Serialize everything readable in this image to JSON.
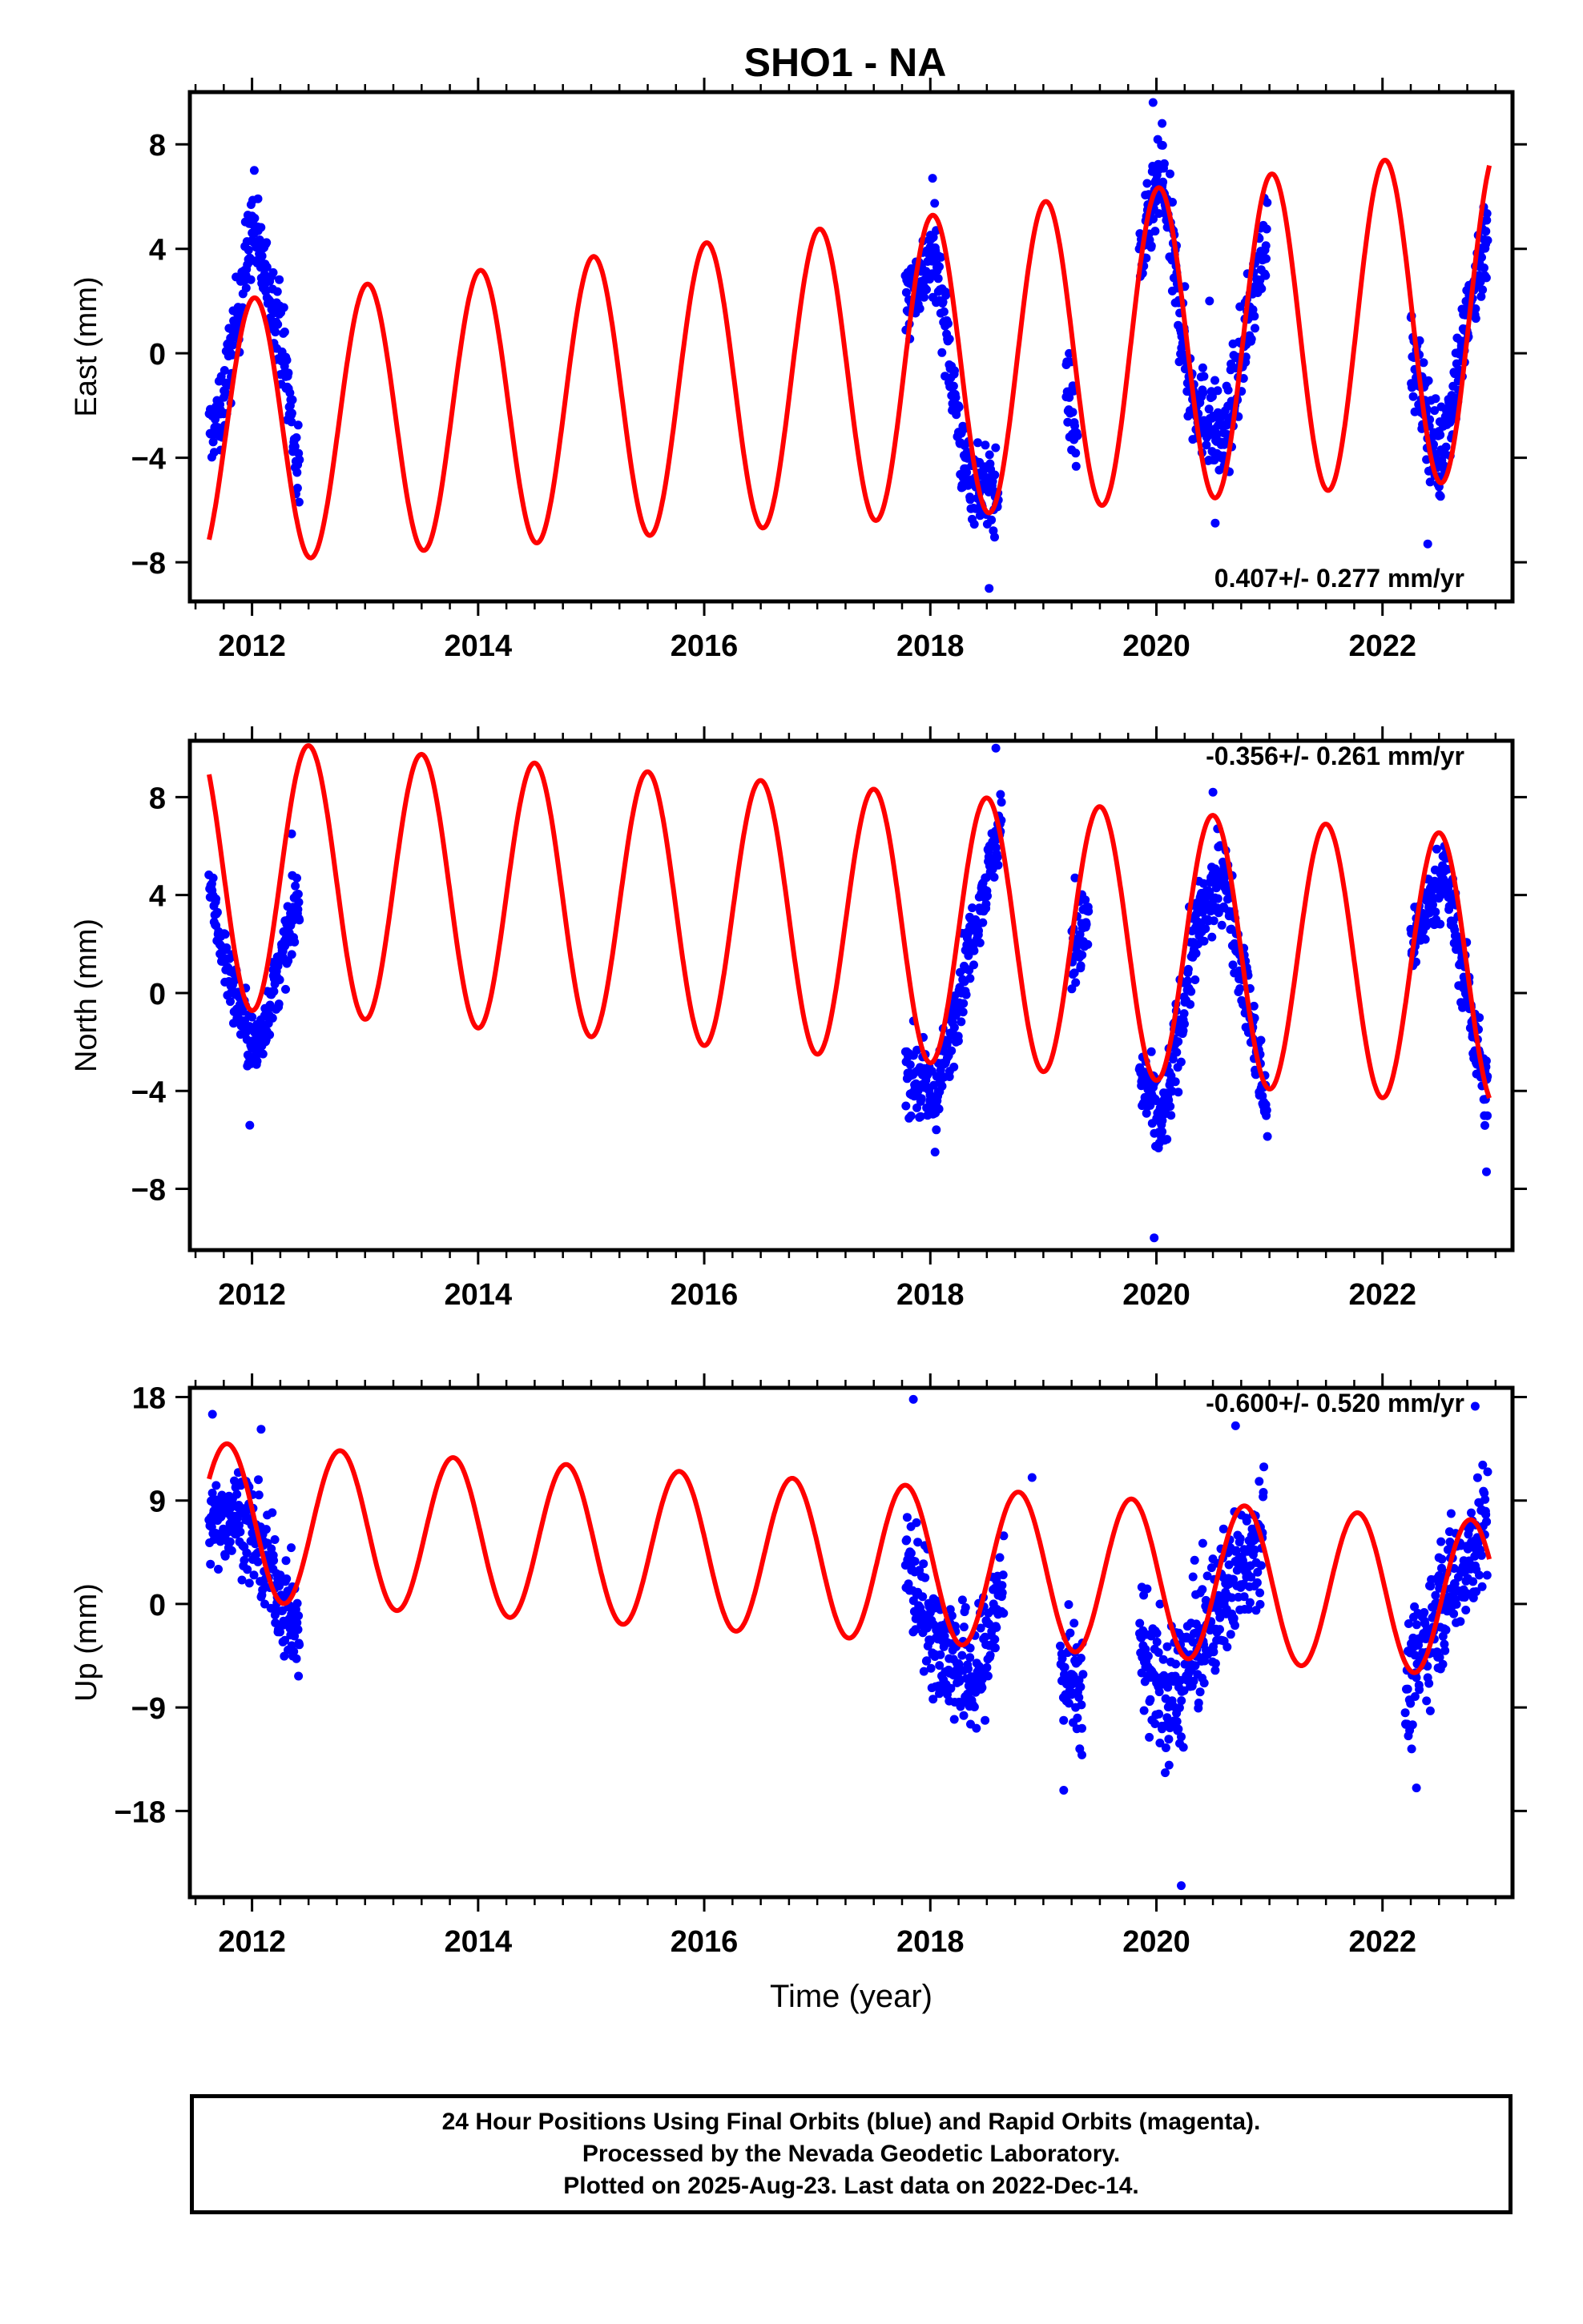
{
  "title": "SHO1 - NA",
  "colors": {
    "data": "#0000ff",
    "model": "#ff0000",
    "frame": "#000000"
  },
  "chart_data": [
    {
      "type": "scatter",
      "component": "east",
      "ylabel": "East (mm)",
      "xlim": [
        2011.45,
        2023.15
      ],
      "ylim": [
        -9.5,
        10.0
      ],
      "yticks": [
        8,
        4,
        0,
        -4,
        -8
      ],
      "ytick_labels": [
        "8",
        "4",
        "0",
        "−4",
        "−8"
      ],
      "xticks": [
        2012,
        2014,
        2016,
        2018,
        2020,
        2022
      ],
      "xtick_labels": [
        "2012",
        "2014",
        "2016",
        "2018",
        "2020",
        "2022"
      ],
      "rate_text": "0.407+/- 0.277 mm/yr",
      "rate_position": "bottom-right",
      "model": {
        "offset": -0.9,
        "rate": 0.407,
        "annual_amp": 5.0,
        "annual_peak": 0.02,
        "amp_change_per_yr": 0.12
      },
      "segments": [
        {
          "t": [
            2011.62,
            2011.72
          ],
          "y": [
            -3.0,
            -2.5
          ],
          "scatter": 1.2
        },
        {
          "t": [
            2011.72,
            2012.0
          ],
          "y": [
            -2.5,
            4.8
          ],
          "scatter": 1.5
        },
        {
          "t": [
            2012.0,
            2012.25
          ],
          "y": [
            4.8,
            1.0
          ],
          "scatter": 1.5
        },
        {
          "t": [
            2012.25,
            2012.42
          ],
          "y": [
            1.0,
            -5.0
          ],
          "scatter": 1.6
        },
        {
          "t": [
            2017.78,
            2018.05
          ],
          "y": [
            2.0,
            3.8
          ],
          "scatter": 1.4
        },
        {
          "t": [
            2018.05,
            2018.3
          ],
          "y": [
            3.8,
            -4.5
          ],
          "scatter": 1.5
        },
        {
          "t": [
            2018.3,
            2018.6
          ],
          "y": [
            -4.5,
            -5.5
          ],
          "scatter": 1.5
        },
        {
          "t": [
            2019.2,
            2019.3
          ],
          "y": [
            -1.0,
            -3.5
          ],
          "scatter": 1.6
        },
        {
          "t": [
            2019.85,
            2020.05
          ],
          "y": [
            3.5,
            6.8
          ],
          "scatter": 1.5
        },
        {
          "t": [
            2020.05,
            2020.3
          ],
          "y": [
            6.8,
            -1.5
          ],
          "scatter": 1.8
        },
        {
          "t": [
            2020.3,
            2020.6
          ],
          "y": [
            -1.5,
            -3.5
          ],
          "scatter": 1.6
        },
        {
          "t": [
            2020.6,
            2020.98
          ],
          "y": [
            -3.5,
            5.0
          ],
          "scatter": 1.6
        },
        {
          "t": [
            2022.25,
            2022.5
          ],
          "y": [
            0.0,
            -4.2
          ],
          "scatter": 1.6
        },
        {
          "t": [
            2022.5,
            2022.93
          ],
          "y": [
            -4.2,
            5.0
          ],
          "scatter": 1.7
        }
      ],
      "outliers": [
        [
          2012.02,
          7.0
        ],
        [
          2018.52,
          -9.0
        ],
        [
          2019.97,
          9.6
        ],
        [
          2020.47,
          2.0
        ],
        [
          2020.52,
          -6.5
        ],
        [
          2022.4,
          -7.3
        ],
        [
          2018.02,
          6.7
        ],
        [
          2020.05,
          8.8
        ]
      ]
    },
    {
      "type": "scatter",
      "component": "north",
      "ylabel": "North (mm)",
      "xlim": [
        2011.45,
        2023.15
      ],
      "ylim": [
        -10.5,
        10.3
      ],
      "yticks": [
        8,
        4,
        0,
        -4,
        -8
      ],
      "ytick_labels": [
        "8",
        "4",
        "0",
        "−4",
        "−8"
      ],
      "xticks": [
        2012,
        2014,
        2016,
        2018,
        2020,
        2022
      ],
      "xtick_labels": [
        "2012",
        "2014",
        "2016",
        "2018",
        "2020",
        "2022"
      ],
      "rate_text": "-0.356+/- 0.261 mm/yr",
      "rate_position": "top-right",
      "model": {
        "offset": 3.0,
        "rate": -0.356,
        "annual_amp": 5.5,
        "annual_peak": 0.5,
        "amp_change_per_yr": 0.0
      },
      "segments": [
        {
          "t": [
            2011.62,
            2011.75
          ],
          "y": [
            4.5,
            1.5
          ],
          "scatter": 1.0
        },
        {
          "t": [
            2011.75,
            2012.02
          ],
          "y": [
            1.5,
            -2.5
          ],
          "scatter": 1.3
        },
        {
          "t": [
            2012.02,
            2012.22
          ],
          "y": [
            -2.5,
            0.5
          ],
          "scatter": 1.2
        },
        {
          "t": [
            2012.22,
            2012.42
          ],
          "y": [
            0.5,
            4.0
          ],
          "scatter": 1.2
        },
        {
          "t": [
            2017.78,
            2018.05
          ],
          "y": [
            -3.0,
            -4.5
          ],
          "scatter": 1.5
        },
        {
          "t": [
            2018.05,
            2018.35
          ],
          "y": [
            -4.5,
            2.0
          ],
          "scatter": 1.5
        },
        {
          "t": [
            2018.35,
            2018.63
          ],
          "y": [
            2.0,
            7.0
          ],
          "scatter": 1.2
        },
        {
          "t": [
            2019.25,
            2019.4
          ],
          "y": [
            1.5,
            3.0
          ],
          "scatter": 1.5
        },
        {
          "t": [
            2019.85,
            2020.05
          ],
          "y": [
            -3.5,
            -5.5
          ],
          "scatter": 1.6
        },
        {
          "t": [
            2020.05,
            2020.35
          ],
          "y": [
            -5.5,
            2.5
          ],
          "scatter": 1.7
        },
        {
          "t": [
            2020.35,
            2020.6
          ],
          "y": [
            2.5,
            5.0
          ],
          "scatter": 1.5
        },
        {
          "t": [
            2020.6,
            2020.98
          ],
          "y": [
            5.0,
            -5.0
          ],
          "scatter": 1.5
        },
        {
          "t": [
            2022.25,
            2022.55
          ],
          "y": [
            2.0,
            5.0
          ],
          "scatter": 1.3
        },
        {
          "t": [
            2022.55,
            2022.93
          ],
          "y": [
            5.0,
            -4.5
          ],
          "scatter": 1.5
        }
      ],
      "outliers": [
        [
          2011.98,
          -5.4
        ],
        [
          2018.58,
          10.0
        ],
        [
          2019.98,
          -10.0
        ],
        [
          2020.5,
          8.2
        ],
        [
          2022.92,
          -7.3
        ],
        [
          2019.28,
          4.7
        ],
        [
          2012.35,
          6.5
        ]
      ]
    },
    {
      "type": "scatter",
      "component": "up",
      "ylabel": "Up (mm)",
      "xlim": [
        2011.45,
        2023.15
      ],
      "ylim": [
        -25.5,
        18.8
      ],
      "yticks": [
        18,
        9,
        0,
        -9,
        -18
      ],
      "ytick_labels": [
        "18",
        "9",
        "0",
        "−9",
        "−18"
      ],
      "xticks": [
        2012,
        2014,
        2016,
        2018,
        2020,
        2022
      ],
      "xtick_labels": [
        "2012",
        "2014",
        "2016",
        "2018",
        "2020",
        "2022"
      ],
      "xlabel": "Time (year)",
      "rate_text": "-0.600+/- 0.520 mm/yr",
      "rate_position": "top-right",
      "model": {
        "offset": 4.0,
        "rate": -0.6,
        "annual_amp": 6.8,
        "annual_peak": 0.78,
        "amp_change_per_yr": 0.0
      },
      "segments": [
        {
          "t": [
            2011.62,
            2011.9
          ],
          "y": [
            7.0,
            8.0
          ],
          "scatter": 3.5
        },
        {
          "t": [
            2011.9,
            2012.2
          ],
          "y": [
            8.0,
            2.0
          ],
          "scatter": 4.0
        },
        {
          "t": [
            2012.2,
            2012.42
          ],
          "y": [
            2.0,
            -3.0
          ],
          "scatter": 4.0
        },
        {
          "t": [
            2017.78,
            2018.05
          ],
          "y": [
            4.0,
            -3.0
          ],
          "scatter": 5.0
        },
        {
          "t": [
            2018.05,
            2018.4
          ],
          "y": [
            -3.0,
            -7.0
          ],
          "scatter": 5.0
        },
        {
          "t": [
            2018.4,
            2018.65
          ],
          "y": [
            -7.0,
            2.0
          ],
          "scatter": 5.0
        },
        {
          "t": [
            2019.15,
            2019.35
          ],
          "y": [
            -5.0,
            -8.0
          ],
          "scatter": 4.5
        },
        {
          "t": [
            2019.85,
            2020.1
          ],
          "y": [
            -3.0,
            -9.0
          ],
          "scatter": 5.5
        },
        {
          "t": [
            2020.1,
            2020.4
          ],
          "y": [
            -9.0,
            -3.0
          ],
          "scatter": 5.5
        },
        {
          "t": [
            2020.4,
            2020.95
          ],
          "y": [
            -3.0,
            7.0
          ],
          "scatter": 5.0
        },
        {
          "t": [
            2022.2,
            2022.5
          ],
          "y": [
            -8.0,
            0.0
          ],
          "scatter": 5.0
        },
        {
          "t": [
            2022.5,
            2022.93
          ],
          "y": [
            0.0,
            7.0
          ],
          "scatter": 5.0
        }
      ],
      "outliers": [
        [
          2017.85,
          17.8
        ],
        [
          2020.22,
          -24.5
        ],
        [
          2011.65,
          16.5
        ],
        [
          2012.08,
          15.2
        ],
        [
          2020.7,
          15.5
        ],
        [
          2022.82,
          17.2
        ],
        [
          2018.9,
          11.0
        ],
        [
          2019.18,
          -16.2
        ],
        [
          2022.3,
          -16.0
        ]
      ]
    }
  ],
  "footer": {
    "line1": "24 Hour Positions Using Final Orbits (blue) and Rapid Orbits (magenta).",
    "line2": "Processed by the Nevada Geodetic Laboratory.",
    "line3": "Plotted on 2025-Aug-23. Last data on 2022-Dec-14."
  }
}
